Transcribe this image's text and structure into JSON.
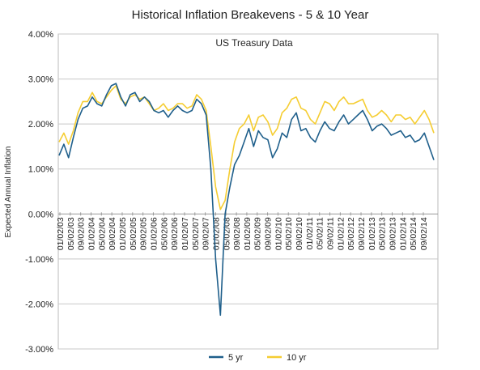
{
  "chart_data": {
    "type": "line",
    "title": "Historical Inflation Breakevens - 5 & 10 Year",
    "subtitle": "US Treasury Data",
    "ylabel": "Expected Annual Inflation",
    "xlabel": "",
    "ylim": [
      -3,
      4
    ],
    "y_ticks": [
      "4.00%",
      "3.00%",
      "2.00%",
      "1.00%",
      "0.00%",
      "-1.00%",
      "-2.00%",
      "-3.00%"
    ],
    "y_tick_values": [
      4,
      3,
      2,
      1,
      0,
      -1,
      -2,
      -3
    ],
    "x_ticks": [
      "01/02/03",
      "05/02/03",
      "09/02/03",
      "01/02/04",
      "05/02/04",
      "09/02/04",
      "01/02/05",
      "05/02/05",
      "09/02/05",
      "01/02/06",
      "05/02/06",
      "09/02/06",
      "01/02/07",
      "05/02/07",
      "09/02/07",
      "01/02/08",
      "05/02/08",
      "09/02/08",
      "01/02/09",
      "05/02/09",
      "09/02/09",
      "01/02/10",
      "05/02/10",
      "09/02/10",
      "01/02/11",
      "05/02/11",
      "09/02/11",
      "01/02/12",
      "05/02/12",
      "09/02/12",
      "01/02/13",
      "05/02/13",
      "09/02/13",
      "01/02/14",
      "05/02/14",
      "09/02/14"
    ],
    "grid": "horizontal",
    "legend_position": "bottom",
    "series": [
      {
        "name": "5 yr",
        "color": "#1f5f8b",
        "values": [
          1.3,
          1.55,
          1.25,
          1.7,
          2.1,
          2.35,
          2.4,
          2.6,
          2.45,
          2.4,
          2.65,
          2.85,
          2.9,
          2.6,
          2.4,
          2.65,
          2.7,
          2.5,
          2.6,
          2.5,
          2.3,
          2.25,
          2.3,
          2.15,
          2.3,
          2.4,
          2.3,
          2.25,
          2.3,
          2.55,
          2.45,
          2.2,
          1.0,
          -1.0,
          -2.25,
          0.0,
          0.6,
          1.1,
          1.3,
          1.6,
          1.9,
          1.5,
          1.85,
          1.7,
          1.65,
          1.25,
          1.45,
          1.8,
          1.7,
          2.1,
          2.25,
          1.85,
          1.9,
          1.7,
          1.6,
          1.85,
          2.05,
          1.9,
          1.85,
          2.05,
          2.2,
          2.0,
          2.1,
          2.2,
          2.3,
          2.1,
          1.85,
          1.95,
          2.0,
          1.9,
          1.75,
          1.8,
          1.85,
          1.7,
          1.75,
          1.6,
          1.65,
          1.8,
          1.5,
          1.2
        ]
      },
      {
        "name": "10 yr",
        "color": "#f5cd32",
        "values": [
          1.6,
          1.8,
          1.55,
          1.85,
          2.25,
          2.5,
          2.5,
          2.7,
          2.5,
          2.45,
          2.6,
          2.75,
          2.85,
          2.55,
          2.45,
          2.6,
          2.65,
          2.55,
          2.6,
          2.45,
          2.3,
          2.35,
          2.45,
          2.3,
          2.35,
          2.45,
          2.45,
          2.35,
          2.4,
          2.65,
          2.55,
          2.3,
          1.5,
          0.6,
          0.1,
          0.3,
          1.0,
          1.6,
          1.9,
          2.0,
          2.2,
          1.85,
          2.15,
          2.2,
          2.05,
          1.75,
          1.9,
          2.25,
          2.35,
          2.55,
          2.6,
          2.35,
          2.3,
          2.1,
          2.0,
          2.25,
          2.5,
          2.45,
          2.3,
          2.5,
          2.6,
          2.45,
          2.45,
          2.5,
          2.55,
          2.3,
          2.15,
          2.2,
          2.3,
          2.2,
          2.05,
          2.2,
          2.2,
          2.1,
          2.15,
          2.0,
          2.15,
          2.3,
          2.1,
          1.8
        ]
      }
    ]
  }
}
